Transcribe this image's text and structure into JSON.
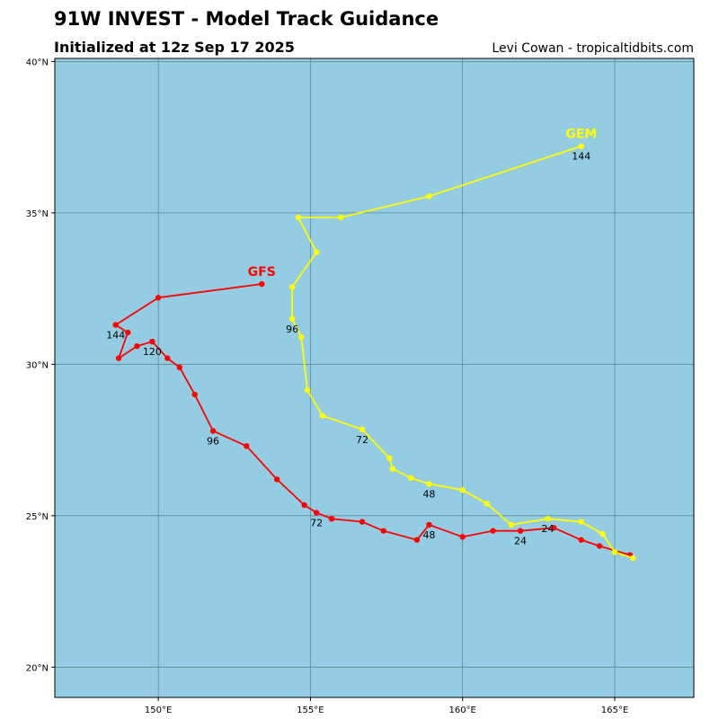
{
  "header": {
    "title": "91W INVEST - Model Track Guidance",
    "subtitle": "Initialized at 12z Sep 17 2025",
    "credit": "Levi Cowan - tropicaltidbits.com"
  },
  "map": {
    "ocean_color": "#94CDE3",
    "grid_color": "#5F8590",
    "lon_range": [
      146.6,
      167.6
    ],
    "lat_range": [
      19,
      40.1
    ],
    "lon_ticks": [
      {
        "value": 150,
        "label": "150°E"
      },
      {
        "value": 155,
        "label": "155°E"
      },
      {
        "value": 160,
        "label": "160°E"
      },
      {
        "value": 165,
        "label": "165°E"
      }
    ],
    "lat_ticks": [
      {
        "value": 20,
        "label": "20°N"
      },
      {
        "value": 25,
        "label": "25°N"
      },
      {
        "value": 30,
        "label": "30°N"
      },
      {
        "value": 35,
        "label": "35°N"
      },
      {
        "value": 40,
        "label": "40°N"
      }
    ]
  },
  "chart_data": {
    "type": "line",
    "xlabel": "",
    "ylabel": "",
    "grid": true,
    "series": [
      {
        "name": "GFS",
        "color": "#FF0000",
        "points": [
          [
            165.5,
            23.7
          ],
          [
            164.5,
            24.0
          ],
          [
            163.9,
            24.2
          ],
          [
            163.0,
            24.6
          ],
          [
            161.9,
            24.5
          ],
          [
            161.0,
            24.5
          ],
          [
            160.0,
            24.3
          ],
          [
            158.9,
            24.7
          ],
          [
            158.5,
            24.2
          ],
          [
            157.4,
            24.5
          ],
          [
            156.7,
            24.8
          ],
          [
            155.7,
            24.9
          ],
          [
            155.2,
            25.1
          ],
          [
            154.8,
            25.35
          ],
          [
            153.9,
            26.2
          ],
          [
            152.9,
            27.3
          ],
          [
            151.8,
            27.8
          ],
          [
            151.2,
            29.0
          ],
          [
            150.7,
            29.9
          ],
          [
            150.3,
            30.2
          ],
          [
            149.8,
            30.75
          ],
          [
            149.3,
            30.6
          ],
          [
            148.7,
            30.2
          ],
          [
            149.0,
            31.05
          ],
          [
            148.6,
            31.3
          ],
          [
            150.0,
            32.2
          ],
          [
            153.4,
            32.65
          ]
        ],
        "hour_labels": [
          {
            "index": 4,
            "text": "24"
          },
          {
            "index": 7,
            "text": "48"
          },
          {
            "index": 12,
            "text": "72"
          },
          {
            "index": 16,
            "text": "96"
          },
          {
            "index": 20,
            "text": "120"
          },
          {
            "index": 24,
            "text": "144"
          }
        ]
      },
      {
        "name": "GEM",
        "color": "#FFFF00",
        "points": [
          [
            165.6,
            23.6
          ],
          [
            165.0,
            23.8
          ],
          [
            164.6,
            24.4
          ],
          [
            163.9,
            24.8
          ],
          [
            162.8,
            24.9
          ],
          [
            161.6,
            24.7
          ],
          [
            160.8,
            25.4
          ],
          [
            160.0,
            25.85
          ],
          [
            158.9,
            26.05
          ],
          [
            158.3,
            26.25
          ],
          [
            157.7,
            26.55
          ],
          [
            157.6,
            26.9
          ],
          [
            156.7,
            27.85
          ],
          [
            155.4,
            28.3
          ],
          [
            154.9,
            29.15
          ],
          [
            154.7,
            30.9
          ],
          [
            154.4,
            31.5
          ],
          [
            154.4,
            32.55
          ],
          [
            155.2,
            33.7
          ],
          [
            154.6,
            34.85
          ],
          [
            156.0,
            34.85
          ],
          [
            158.9,
            35.55
          ],
          [
            163.9,
            37.2
          ]
        ],
        "hour_labels": [
          {
            "index": 4,
            "text": "24"
          },
          {
            "index": 8,
            "text": "48"
          },
          {
            "index": 12,
            "text": "72"
          },
          {
            "index": 16,
            "text": "96"
          },
          {
            "index": 22,
            "text": "144"
          }
        ]
      }
    ]
  }
}
